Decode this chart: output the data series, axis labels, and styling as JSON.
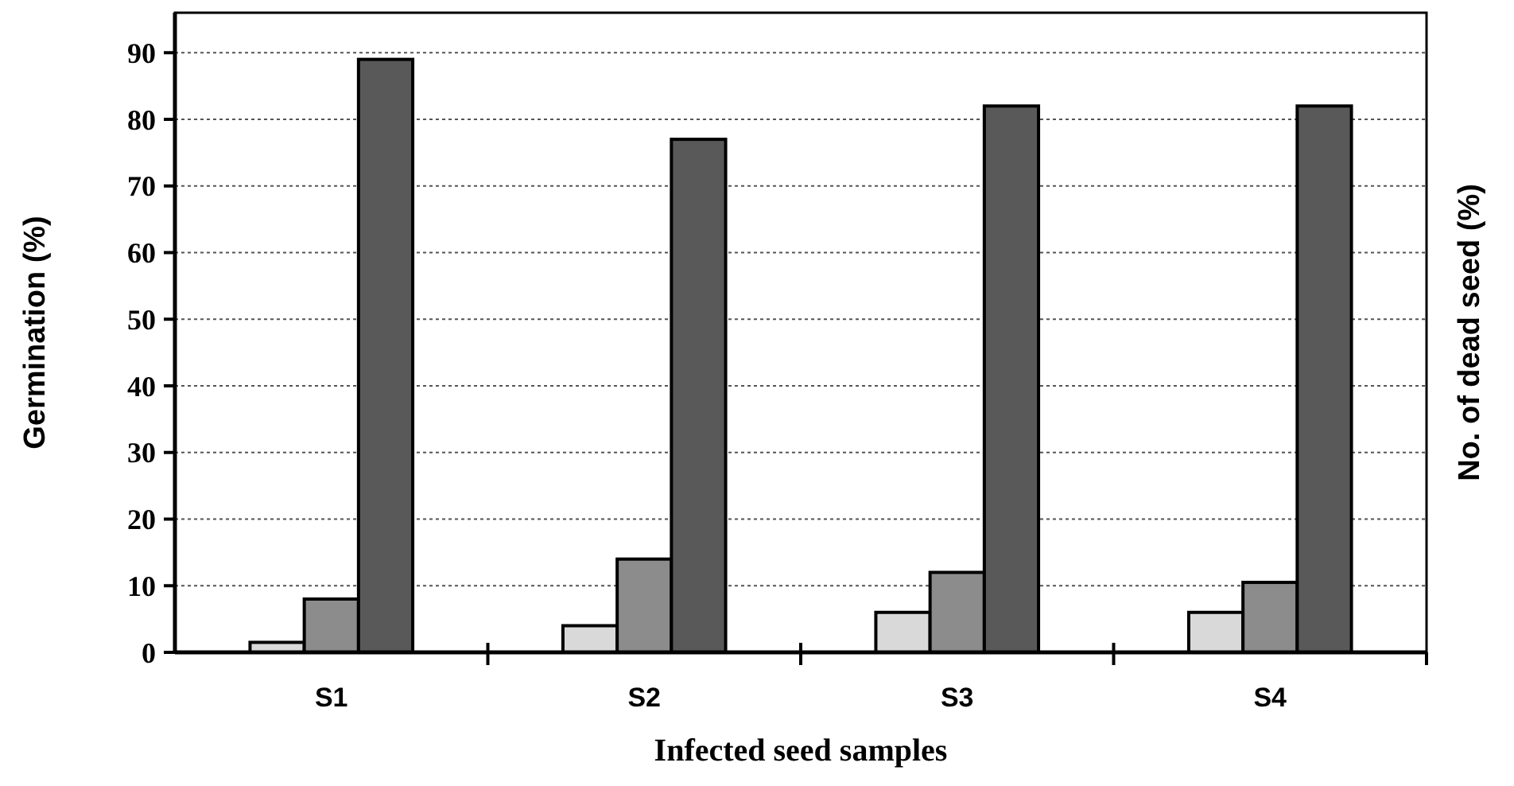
{
  "chart_data": {
    "type": "bar",
    "xlabel": "Infected seed samples",
    "ylabel": "Germination (%)",
    "y2label": "No. of dead seed (%)",
    "categories": [
      "S1",
      "S2",
      "S3",
      "S4"
    ],
    "series": [
      {
        "color": "#d9d9d9",
        "values": [
          1.5,
          4,
          6,
          6
        ]
      },
      {
        "color": "#8c8c8c",
        "values": [
          8,
          14,
          12,
          10.5
        ]
      },
      {
        "color": "#595959",
        "values": [
          89,
          77,
          82,
          82
        ]
      }
    ],
    "ylim": [
      0,
      96
    ],
    "yticks": [
      0,
      10,
      20,
      30,
      40,
      50,
      60,
      70,
      80,
      90
    ],
    "grid": "y"
  }
}
